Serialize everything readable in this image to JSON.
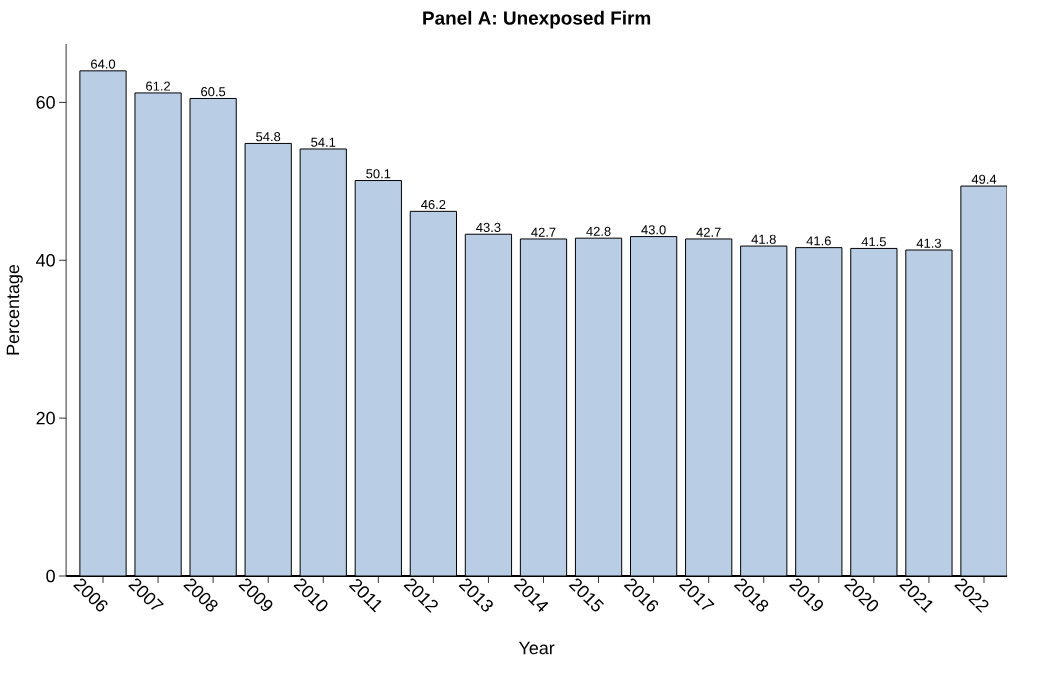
{
  "chart_data": {
    "type": "bar",
    "title": "Panel A: Unexposed Firm",
    "xlabel": "Year",
    "ylabel": "Percentage",
    "categories": [
      "2006",
      "2007",
      "2008",
      "2009",
      "2010",
      "2011",
      "2012",
      "2013",
      "2014",
      "2015",
      "2016",
      "2017",
      "2018",
      "2019",
      "2020",
      "2021",
      "2022"
    ],
    "values": [
      64.0,
      61.2,
      60.5,
      54.8,
      54.1,
      50.1,
      46.2,
      43.3,
      42.7,
      42.8,
      43.0,
      42.7,
      41.8,
      41.6,
      41.5,
      41.3,
      49.4
    ],
    "color": "#b9cde5",
    "ylim": [
      0,
      67.4
    ],
    "yticks": [
      0,
      20,
      40,
      60
    ],
    "value_labels": [
      "64.0",
      "61.2",
      "60.5",
      "54.8",
      "54.1",
      "50.1",
      "46.2",
      "43.3",
      "42.7",
      "42.8",
      "43.0",
      "42.7",
      "41.8",
      "41.6",
      "41.5",
      "41.3",
      "49.4"
    ]
  }
}
